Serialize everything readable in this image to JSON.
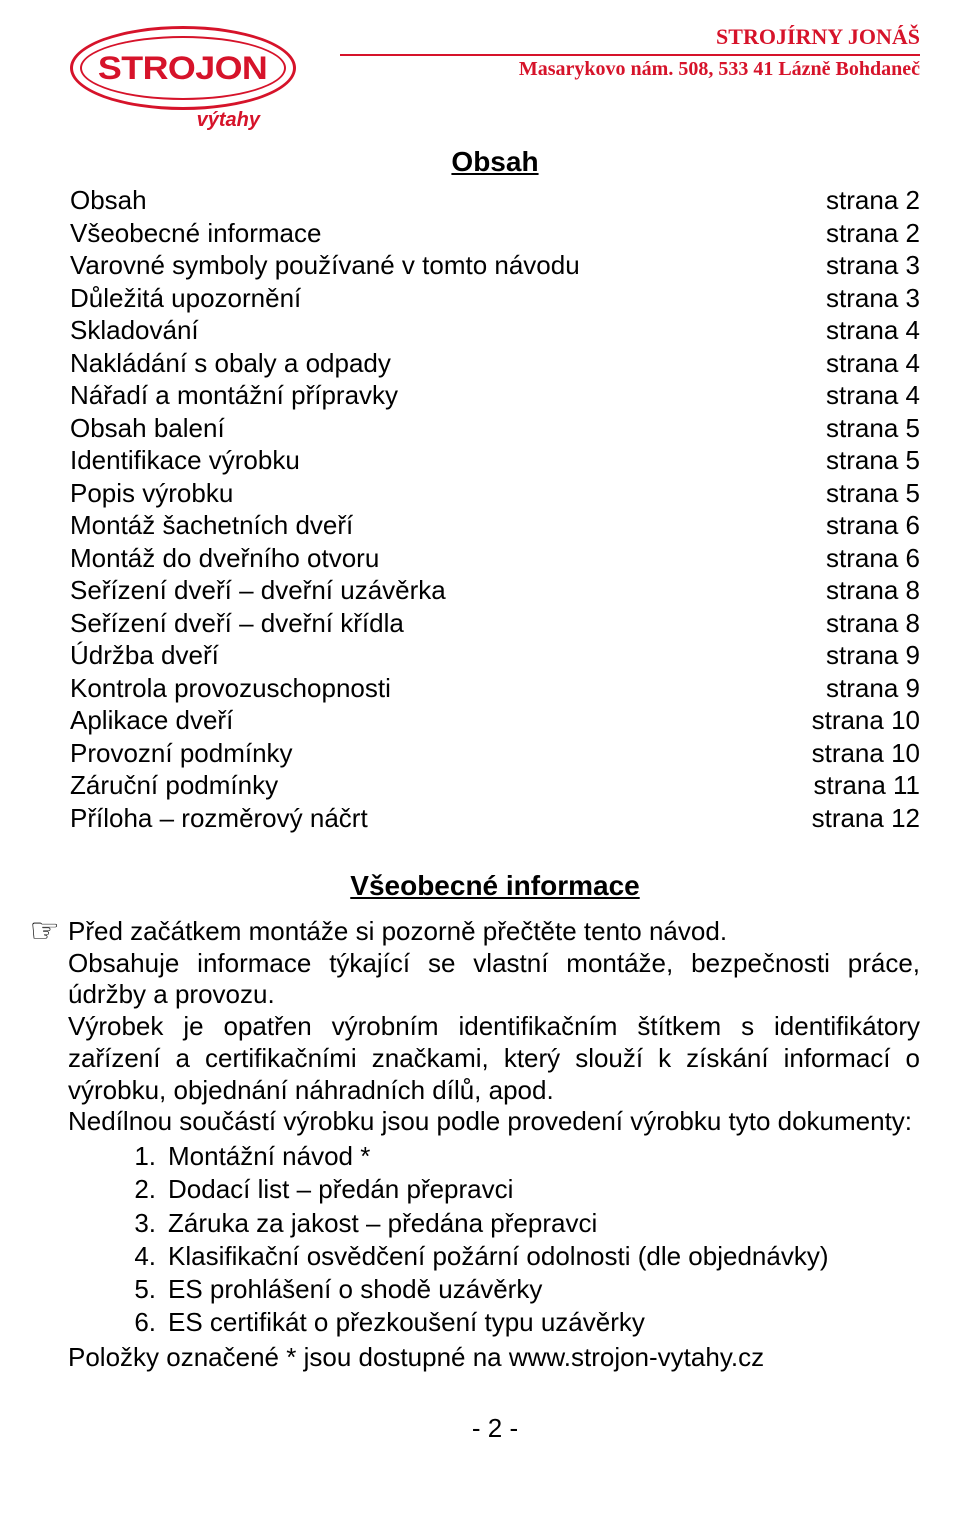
{
  "colors": {
    "brand_red": "#d6132a",
    "rule_red": "#d6132a",
    "black": "#000000"
  },
  "header": {
    "logo_main": "STROJON",
    "logo_sub": "výtahy",
    "company": "STROJÍRNY JONÁŠ",
    "address": "Masarykovo nám. 508, 533 41 Lázně Bohdaneč"
  },
  "toc": {
    "title": "Obsah",
    "items": [
      {
        "label": "Obsah",
        "page": "strana 2"
      },
      {
        "label": "Všeobecné informace",
        "page": "strana 2"
      },
      {
        "label": "Varovné symboly používané v tomto návodu",
        "page": "strana 3"
      },
      {
        "label": "Důležitá upozornění",
        "page": "strana 3"
      },
      {
        "label": "Skladování",
        "page": "strana 4"
      },
      {
        "label": "Nakládání s obaly a odpady",
        "page": "strana 4"
      },
      {
        "label": "Nářadí a montážní přípravky",
        "page": "strana 4"
      },
      {
        "label": "Obsah balení",
        "page": "strana 5"
      },
      {
        "label": "Identifikace výrobku",
        "page": "strana 5"
      },
      {
        "label": "Popis výrobku",
        "page": "strana 5"
      },
      {
        "label": "Montáž šachetních dveří",
        "page": "strana 6"
      },
      {
        "label": "Montáž do dveřního otvoru",
        "page": "strana 6"
      },
      {
        "label": "Seřízení dveří – dveřní uzávěrka",
        "page": "strana 8"
      },
      {
        "label": "Seřízení dveří – dveřní křídla",
        "page": "strana 8"
      },
      {
        "label": "Údržba dveří",
        "page": "strana 9"
      },
      {
        "label": "Kontrola provozuschopnosti",
        "page": "strana 9"
      },
      {
        "label": "Aplikace dveří",
        "page": "strana 10"
      },
      {
        "label": "Provozní podmínky",
        "page": "strana 10"
      },
      {
        "label": "Záruční podmínky",
        "page": "strana 11"
      },
      {
        "label": "Příloha – rozměrový náčrt",
        "page": "strana 12"
      }
    ]
  },
  "info": {
    "title": "Všeobecné informace",
    "lead": "Před začátkem montáže si pozorně přečtěte tento návod.",
    "p1": "Obsahuje informace týkající se vlastní montáže, bezpečnosti práce, údržby a provozu.",
    "p2": "Výrobek je opatřen výrobním identifikačním štítkem s identifikátory zařízení a certifikačními značkami, který slouží k získání informací o výrobku, objednání náhradních dílů, apod.",
    "p3": "Nedílnou součástí výrobku jsou podle provedení výrobku tyto dokumenty:",
    "list": [
      {
        "n": "1.",
        "t": "Montážní návod *"
      },
      {
        "n": "2.",
        "t": "Dodací list – předán přepravci"
      },
      {
        "n": "3.",
        "t": "Záruka za jakost – předána přepravci"
      },
      {
        "n": "4.",
        "t": "Klasifikační osvědčení požární odolnosti (dle objednávky)"
      },
      {
        "n": "5.",
        "t": "ES prohlášení o shodě uzávěrky"
      },
      {
        "n": "6.",
        "t": "ES certifikát o přezkoušení typu uzávěrky"
      }
    ],
    "footnote": "Položky označené  *  jsou dostupné na www.strojon-vytahy.cz"
  },
  "page_number": "- 2 -",
  "typography": {
    "body_fontsize": 26,
    "title_fontsize": 28,
    "header_company_fontsize": 22,
    "header_addr_fontsize": 20,
    "logo_main_fontsize": 32,
    "logo_sub_fontsize": 20
  }
}
